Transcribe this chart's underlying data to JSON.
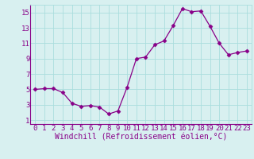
{
  "x": [
    0,
    1,
    2,
    3,
    4,
    5,
    6,
    7,
    8,
    9,
    10,
    11,
    12,
    13,
    14,
    15,
    16,
    17,
    18,
    19,
    20,
    21,
    22,
    23
  ],
  "y": [
    5.0,
    5.1,
    5.1,
    4.6,
    3.2,
    2.8,
    2.9,
    2.7,
    1.8,
    2.2,
    5.3,
    9.0,
    9.2,
    10.8,
    11.3,
    13.3,
    15.5,
    15.1,
    15.2,
    13.2,
    11.0,
    9.5,
    9.8,
    10.0
  ],
  "line_color": "#880088",
  "marker": "D",
  "marker_size": 2.5,
  "bg_color": "#d8f0f0",
  "grid_color": "#aadddd",
  "xlabel": "Windchill (Refroidissement éolien,°C)",
  "xlim": [
    -0.5,
    23.5
  ],
  "ylim": [
    0.5,
    16.0
  ],
  "yticks": [
    1,
    3,
    5,
    7,
    9,
    11,
    13,
    15
  ],
  "xticks": [
    0,
    1,
    2,
    3,
    4,
    5,
    6,
    7,
    8,
    9,
    10,
    11,
    12,
    13,
    14,
    15,
    16,
    17,
    18,
    19,
    20,
    21,
    22,
    23
  ],
  "tick_label_color": "#880088",
  "xlabel_color": "#880088",
  "xlabel_fontsize": 7.0,
  "tick_fontsize": 6.5,
  "spine_color": "#880088"
}
